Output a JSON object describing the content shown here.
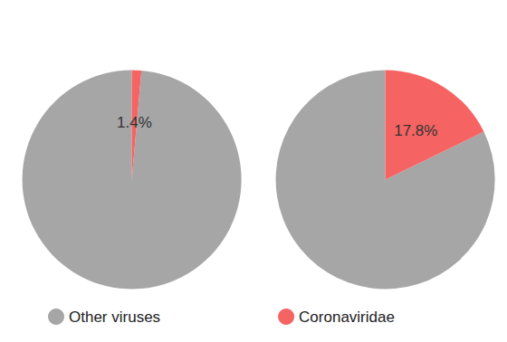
{
  "chart_data": [
    {
      "type": "pie",
      "categories": [
        "Other viruses",
        "Coronaviridae"
      ],
      "values": [
        98.6,
        1.4
      ],
      "value_labels": [
        null,
        "1.4%"
      ],
      "colors": [
        "#a6a6a6",
        "#f56462"
      ],
      "legend": "bottom"
    },
    {
      "type": "pie",
      "categories": [
        "Other viruses",
        "Coronaviridae"
      ],
      "values": [
        82.2,
        17.8
      ],
      "value_labels": [
        null,
        "17.8%"
      ],
      "colors": [
        "#a6a6a6",
        "#f56462"
      ],
      "legend": "bottom"
    }
  ]
}
